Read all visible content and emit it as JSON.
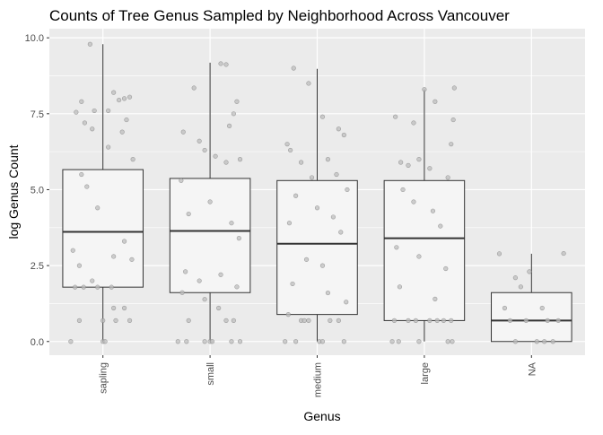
{
  "chart_data": {
    "type": "box",
    "title": "Counts of Tree Genus Sampled by Neighborhood Across Vancouver",
    "xlabel": "Genus",
    "ylabel": "log Genus Count",
    "ylim": [
      -0.45,
      10.3
    ],
    "yticks": [
      0.0,
      2.5,
      5.0,
      7.5,
      10.0
    ],
    "ytick_labels": [
      "0.0",
      "2.5",
      "5.0",
      "7.5",
      "10.0"
    ],
    "grid": true,
    "categories": [
      "sapling",
      "small",
      "medium",
      "large",
      "NA"
    ],
    "boxes": [
      {
        "category": "sapling",
        "whisker_low": 0.0,
        "q1": 1.79,
        "median": 3.61,
        "q3": 5.66,
        "whisker_high": 9.79
      },
      {
        "category": "small",
        "whisker_low": 0.0,
        "q1": 1.61,
        "median": 3.64,
        "q3": 5.37,
        "whisker_high": 9.18
      },
      {
        "category": "medium",
        "whisker_low": 0.0,
        "q1": 0.89,
        "median": 3.22,
        "q3": 5.3,
        "whisker_high": 8.98
      },
      {
        "category": "large",
        "whisker_low": 0.0,
        "q1": 0.69,
        "median": 3.4,
        "q3": 5.3,
        "whisker_high": 8.3
      },
      {
        "category": "NA",
        "whisker_low": 0.0,
        "q1": 0.0,
        "median": 0.69,
        "q3": 1.61,
        "whisker_high": 2.89
      }
    ],
    "points": [
      {
        "category": "sapling",
        "x_jitter": -0.25,
        "y": 7.55
      },
      {
        "category": "sapling",
        "x_jitter": -0.2,
        "y": 7.9
      },
      {
        "category": "sapling",
        "x_jitter": -0.17,
        "y": 7.2
      },
      {
        "category": "sapling",
        "x_jitter": -0.12,
        "y": 9.79
      },
      {
        "category": "sapling",
        "x_jitter": -0.08,
        "y": 7.6
      },
      {
        "category": "sapling",
        "x_jitter": 0.05,
        "y": 7.6
      },
      {
        "category": "sapling",
        "x_jitter": 0.1,
        "y": 8.2
      },
      {
        "category": "sapling",
        "x_jitter": 0.15,
        "y": 7.95
      },
      {
        "category": "sapling",
        "x_jitter": 0.2,
        "y": 8.0
      },
      {
        "category": "sapling",
        "x_jitter": 0.25,
        "y": 8.05
      },
      {
        "category": "sapling",
        "x_jitter": 0.22,
        "y": 7.3
      },
      {
        "category": "sapling",
        "x_jitter": -0.1,
        "y": 7.0
      },
      {
        "category": "sapling",
        "x_jitter": -0.2,
        "y": 5.5
      },
      {
        "category": "sapling",
        "x_jitter": -0.15,
        "y": 5.1
      },
      {
        "category": "sapling",
        "x_jitter": -0.05,
        "y": 4.4
      },
      {
        "category": "sapling",
        "x_jitter": 0.05,
        "y": 6.4
      },
      {
        "category": "sapling",
        "x_jitter": 0.18,
        "y": 6.9
      },
      {
        "category": "sapling",
        "x_jitter": 0.28,
        "y": 6.0
      },
      {
        "category": "sapling",
        "x_jitter": -0.28,
        "y": 3.0
      },
      {
        "category": "sapling",
        "x_jitter": -0.22,
        "y": 2.5
      },
      {
        "category": "sapling",
        "x_jitter": -0.1,
        "y": 2.0
      },
      {
        "category": "sapling",
        "x_jitter": 0.1,
        "y": 2.8
      },
      {
        "category": "sapling",
        "x_jitter": 0.2,
        "y": 3.3
      },
      {
        "category": "sapling",
        "x_jitter": 0.27,
        "y": 2.7
      },
      {
        "category": "sapling",
        "x_jitter": -0.26,
        "y": 1.79
      },
      {
        "category": "sapling",
        "x_jitter": -0.18,
        "y": 1.79
      },
      {
        "category": "sapling",
        "x_jitter": -0.05,
        "y": 1.79
      },
      {
        "category": "sapling",
        "x_jitter": 0.08,
        "y": 1.79
      },
      {
        "category": "sapling",
        "x_jitter": -0.22,
        "y": 0.69
      },
      {
        "category": "sapling",
        "x_jitter": 0.0,
        "y": 0.69
      },
      {
        "category": "sapling",
        "x_jitter": 0.12,
        "y": 0.69
      },
      {
        "category": "sapling",
        "x_jitter": 0.25,
        "y": 0.69
      },
      {
        "category": "sapling",
        "x_jitter": 0.1,
        "y": 1.1
      },
      {
        "category": "sapling",
        "x_jitter": 0.2,
        "y": 1.1
      },
      {
        "category": "sapling",
        "x_jitter": -0.3,
        "y": 0.0
      },
      {
        "category": "sapling",
        "x_jitter": 0.0,
        "y": 0.0
      },
      {
        "category": "sapling",
        "x_jitter": 0.02,
        "y": 0.0
      },
      {
        "category": "small",
        "x_jitter": -0.15,
        "y": 8.35
      },
      {
        "category": "small",
        "x_jitter": 0.1,
        "y": 9.15
      },
      {
        "category": "small",
        "x_jitter": 0.15,
        "y": 9.12
      },
      {
        "category": "small",
        "x_jitter": 0.25,
        "y": 7.9
      },
      {
        "category": "small",
        "x_jitter": 0.22,
        "y": 7.5
      },
      {
        "category": "small",
        "x_jitter": 0.18,
        "y": 7.1
      },
      {
        "category": "small",
        "x_jitter": -0.25,
        "y": 6.9
      },
      {
        "category": "small",
        "x_jitter": -0.1,
        "y": 6.6
      },
      {
        "category": "small",
        "x_jitter": -0.05,
        "y": 6.3
      },
      {
        "category": "small",
        "x_jitter": 0.05,
        "y": 6.1
      },
      {
        "category": "small",
        "x_jitter": 0.15,
        "y": 5.9
      },
      {
        "category": "small",
        "x_jitter": 0.28,
        "y": 6.0
      },
      {
        "category": "small",
        "x_jitter": -0.27,
        "y": 5.3
      },
      {
        "category": "small",
        "x_jitter": -0.2,
        "y": 4.2
      },
      {
        "category": "small",
        "x_jitter": 0.0,
        "y": 4.6
      },
      {
        "category": "small",
        "x_jitter": 0.2,
        "y": 3.9
      },
      {
        "category": "small",
        "x_jitter": 0.27,
        "y": 3.4
      },
      {
        "category": "small",
        "x_jitter": -0.23,
        "y": 2.3
      },
      {
        "category": "small",
        "x_jitter": -0.1,
        "y": 2.0
      },
      {
        "category": "small",
        "x_jitter": 0.1,
        "y": 2.2
      },
      {
        "category": "small",
        "x_jitter": 0.25,
        "y": 1.8
      },
      {
        "category": "small",
        "x_jitter": -0.26,
        "y": 1.61
      },
      {
        "category": "small",
        "x_jitter": -0.05,
        "y": 1.39
      },
      {
        "category": "small",
        "x_jitter": 0.08,
        "y": 1.1
      },
      {
        "category": "small",
        "x_jitter": -0.2,
        "y": 0.69
      },
      {
        "category": "small",
        "x_jitter": 0.15,
        "y": 0.69
      },
      {
        "category": "small",
        "x_jitter": 0.22,
        "y": 0.69
      },
      {
        "category": "small",
        "x_jitter": -0.3,
        "y": 0.0
      },
      {
        "category": "small",
        "x_jitter": -0.22,
        "y": 0.0
      },
      {
        "category": "small",
        "x_jitter": -0.05,
        "y": 0.0
      },
      {
        "category": "small",
        "x_jitter": 0.0,
        "y": 0.0
      },
      {
        "category": "small",
        "x_jitter": 0.02,
        "y": 0.0
      },
      {
        "category": "small",
        "x_jitter": 0.2,
        "y": 0.0
      },
      {
        "category": "small",
        "x_jitter": 0.28,
        "y": 0.0
      },
      {
        "category": "medium",
        "x_jitter": -0.22,
        "y": 9.0
      },
      {
        "category": "medium",
        "x_jitter": -0.08,
        "y": 8.5
      },
      {
        "category": "medium",
        "x_jitter": 0.05,
        "y": 7.4
      },
      {
        "category": "medium",
        "x_jitter": 0.2,
        "y": 7.0
      },
      {
        "category": "medium",
        "x_jitter": 0.25,
        "y": 6.8
      },
      {
        "category": "medium",
        "x_jitter": -0.28,
        "y": 6.5
      },
      {
        "category": "medium",
        "x_jitter": -0.25,
        "y": 6.3
      },
      {
        "category": "medium",
        "x_jitter": -0.15,
        "y": 5.9
      },
      {
        "category": "medium",
        "x_jitter": -0.05,
        "y": 5.4
      },
      {
        "category": "medium",
        "x_jitter": 0.1,
        "y": 6.0
      },
      {
        "category": "medium",
        "x_jitter": 0.18,
        "y": 5.5
      },
      {
        "category": "medium",
        "x_jitter": 0.28,
        "y": 5.0
      },
      {
        "category": "medium",
        "x_jitter": -0.2,
        "y": 4.8
      },
      {
        "category": "medium",
        "x_jitter": 0.0,
        "y": 4.4
      },
      {
        "category": "medium",
        "x_jitter": 0.15,
        "y": 4.1
      },
      {
        "category": "medium",
        "x_jitter": -0.26,
        "y": 3.9
      },
      {
        "category": "medium",
        "x_jitter": -0.1,
        "y": 2.7
      },
      {
        "category": "medium",
        "x_jitter": 0.05,
        "y": 2.5
      },
      {
        "category": "medium",
        "x_jitter": 0.22,
        "y": 3.6
      },
      {
        "category": "medium",
        "x_jitter": -0.23,
        "y": 1.9
      },
      {
        "category": "medium",
        "x_jitter": 0.1,
        "y": 1.6
      },
      {
        "category": "medium",
        "x_jitter": 0.27,
        "y": 1.3
      },
      {
        "category": "medium",
        "x_jitter": -0.27,
        "y": 0.89
      },
      {
        "category": "medium",
        "x_jitter": -0.15,
        "y": 0.69
      },
      {
        "category": "medium",
        "x_jitter": -0.12,
        "y": 0.69
      },
      {
        "category": "medium",
        "x_jitter": -0.08,
        "y": 0.69
      },
      {
        "category": "medium",
        "x_jitter": 0.12,
        "y": 0.69
      },
      {
        "category": "medium",
        "x_jitter": 0.2,
        "y": 0.69
      },
      {
        "category": "medium",
        "x_jitter": -0.3,
        "y": 0.0
      },
      {
        "category": "medium",
        "x_jitter": -0.2,
        "y": 0.0
      },
      {
        "category": "medium",
        "x_jitter": 0.02,
        "y": 0.0
      },
      {
        "category": "medium",
        "x_jitter": 0.05,
        "y": 0.0
      },
      {
        "category": "medium",
        "x_jitter": 0.25,
        "y": 0.0
      },
      {
        "category": "large",
        "x_jitter": -0.27,
        "y": 7.4
      },
      {
        "category": "large",
        "x_jitter": -0.1,
        "y": 7.2
      },
      {
        "category": "large",
        "x_jitter": 0.0,
        "y": 8.3
      },
      {
        "category": "large",
        "x_jitter": 0.1,
        "y": 7.9
      },
      {
        "category": "large",
        "x_jitter": 0.28,
        "y": 8.35
      },
      {
        "category": "large",
        "x_jitter": 0.27,
        "y": 7.3
      },
      {
        "category": "large",
        "x_jitter": 0.25,
        "y": 6.5
      },
      {
        "category": "large",
        "x_jitter": -0.22,
        "y": 5.9
      },
      {
        "category": "large",
        "x_jitter": -0.15,
        "y": 5.8
      },
      {
        "category": "large",
        "x_jitter": -0.05,
        "y": 6.0
      },
      {
        "category": "large",
        "x_jitter": 0.05,
        "y": 5.7
      },
      {
        "category": "large",
        "x_jitter": 0.22,
        "y": 5.4
      },
      {
        "category": "large",
        "x_jitter": -0.2,
        "y": 5.0
      },
      {
        "category": "large",
        "x_jitter": -0.1,
        "y": 4.6
      },
      {
        "category": "large",
        "x_jitter": 0.08,
        "y": 4.3
      },
      {
        "category": "large",
        "x_jitter": 0.15,
        "y": 3.8
      },
      {
        "category": "large",
        "x_jitter": -0.26,
        "y": 3.1
      },
      {
        "category": "large",
        "x_jitter": -0.05,
        "y": 2.8
      },
      {
        "category": "large",
        "x_jitter": 0.2,
        "y": 2.4
      },
      {
        "category": "large",
        "x_jitter": -0.23,
        "y": 1.8
      },
      {
        "category": "large",
        "x_jitter": 0.1,
        "y": 1.4
      },
      {
        "category": "large",
        "x_jitter": -0.28,
        "y": 0.69
      },
      {
        "category": "large",
        "x_jitter": -0.15,
        "y": 0.69
      },
      {
        "category": "large",
        "x_jitter": -0.08,
        "y": 0.69
      },
      {
        "category": "large",
        "x_jitter": 0.05,
        "y": 0.69
      },
      {
        "category": "large",
        "x_jitter": 0.12,
        "y": 0.69
      },
      {
        "category": "large",
        "x_jitter": 0.18,
        "y": 0.69
      },
      {
        "category": "large",
        "x_jitter": 0.25,
        "y": 0.69
      },
      {
        "category": "large",
        "x_jitter": -0.3,
        "y": 0.0
      },
      {
        "category": "large",
        "x_jitter": -0.24,
        "y": 0.0
      },
      {
        "category": "large",
        "x_jitter": -0.05,
        "y": 0.0
      },
      {
        "category": "large",
        "x_jitter": 0.22,
        "y": 0.0
      },
      {
        "category": "large",
        "x_jitter": 0.26,
        "y": 0.0
      },
      {
        "category": "NA",
        "x_jitter": -0.3,
        "y": 2.89
      },
      {
        "category": "NA",
        "x_jitter": -0.02,
        "y": 2.3
      },
      {
        "category": "NA",
        "x_jitter": 0.3,
        "y": 2.9
      },
      {
        "category": "NA",
        "x_jitter": -0.15,
        "y": 2.1
      },
      {
        "category": "NA",
        "x_jitter": -0.1,
        "y": 1.8
      },
      {
        "category": "NA",
        "x_jitter": -0.25,
        "y": 1.1
      },
      {
        "category": "NA",
        "x_jitter": 0.1,
        "y": 1.1
      },
      {
        "category": "NA",
        "x_jitter": -0.2,
        "y": 0.69
      },
      {
        "category": "NA",
        "x_jitter": -0.05,
        "y": 0.69
      },
      {
        "category": "NA",
        "x_jitter": 0.15,
        "y": 0.69
      },
      {
        "category": "NA",
        "x_jitter": 0.25,
        "y": 0.69
      },
      {
        "category": "NA",
        "x_jitter": -0.15,
        "y": 0.0
      },
      {
        "category": "NA",
        "x_jitter": 0.05,
        "y": 0.0
      },
      {
        "category": "NA",
        "x_jitter": 0.12,
        "y": 0.0
      },
      {
        "category": "NA",
        "x_jitter": 0.2,
        "y": 0.0
      }
    ]
  },
  "colors": {
    "panel_background": "#ebebeb",
    "grid_major": "#ffffff",
    "box_fill": "#f5f5f5",
    "box_line": "#333333",
    "point_fill": "#bdbdbd",
    "point_stroke": "#7f7f7f",
    "text": "#000000",
    "tick_text": "#4d4d4d"
  }
}
